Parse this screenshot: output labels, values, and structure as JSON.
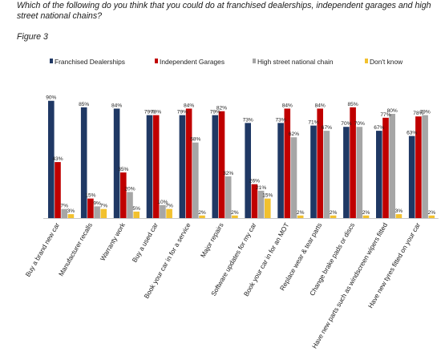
{
  "question": "Which of the following do you think that you could do at franchised dealerships, independent garages and high street national chains?",
  "figure_label": "Figure 3",
  "chart_data": {
    "type": "bar",
    "title": "Which of the following do you think that you could do at franchised dealerships, independent garages and high street national chains?",
    "subtitle": "Figure 3",
    "xlabel": "",
    "ylabel": "",
    "ylim": [
      0,
      100
    ],
    "grid": false,
    "legend_position": "top",
    "categories": [
      "Buy a brand new car",
      "Manufacturer recalls",
      "Warranty work",
      "Buy a used car",
      "Book your car in for a service",
      "Major repairs",
      "Software updates for my car",
      "Book your car in for an MOT",
      "Replace wear & tear parts",
      "Change brake pads or discs",
      "Have new parts such as windscreen wipers fitted",
      "Have new tyres fitted on your car"
    ],
    "series": [
      {
        "name": "Franchised Dealerships",
        "color": "#1f3864",
        "values": [
          90,
          85,
          84,
          79,
          79,
          79,
          73,
          73,
          71,
          70,
          67,
          63
        ]
      },
      {
        "name": "Independent Garages",
        "color": "#c00000",
        "values": [
          43,
          15,
          35,
          79,
          84,
          82,
          26,
          84,
          84,
          85,
          77,
          78
        ]
      },
      {
        "name": "High street national chain",
        "color": "#a6a6a6",
        "values": [
          7,
          9,
          20,
          10,
          58,
          32,
          21,
          62,
          67,
          70,
          80,
          79
        ]
      },
      {
        "name": "Don't know",
        "color": "#f2c12e",
        "values": [
          3,
          7,
          5,
          7,
          2,
          2,
          15,
          2,
          2,
          2,
          3,
          2
        ]
      }
    ],
    "value_labels": [
      [
        "90%",
        "43%",
        "7%",
        "3%"
      ],
      [
        "85%",
        "15%",
        "9%",
        "7%"
      ],
      [
        "84%",
        "35%",
        "20%",
        "5%"
      ],
      [
        "79%",
        "79%",
        "10%",
        "7%"
      ],
      [
        "79%",
        "84%",
        "58%",
        "2%"
      ],
      [
        "79%",
        "82%",
        "32%",
        "2%"
      ],
      [
        "73%",
        "26%",
        "21%",
        "15%"
      ],
      [
        "73%",
        "84%",
        "62%",
        "2%"
      ],
      [
        "71%",
        "84%",
        "67%",
        "2%"
      ],
      [
        "70%",
        "85%",
        "70%",
        "2%"
      ],
      [
        "67%",
        "77%",
        "80%",
        "3%"
      ],
      [
        "63%",
        "78%",
        "79%",
        "2%"
      ]
    ]
  }
}
